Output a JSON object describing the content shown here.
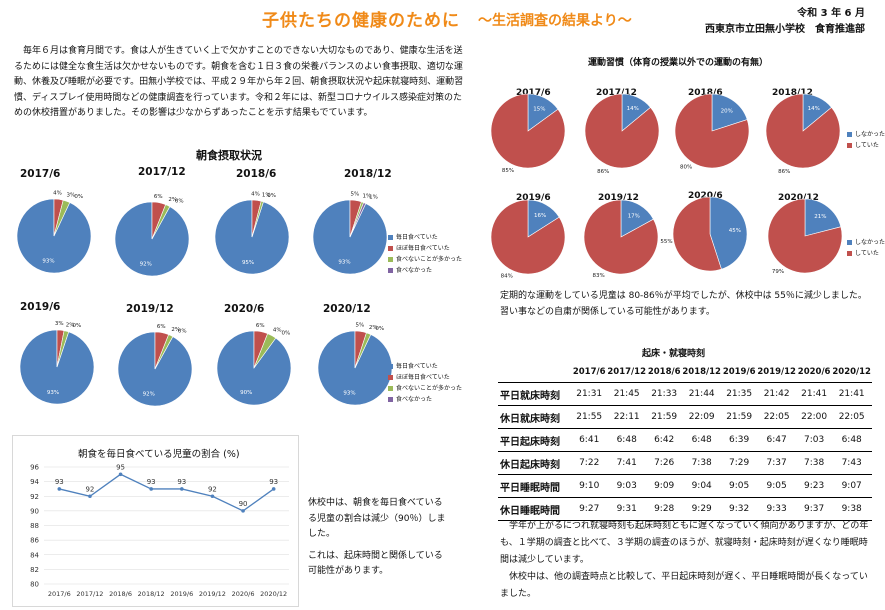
{
  "header": {
    "title": "子供たちの健康のために",
    "subtitle": "～生活調査の結果より～",
    "date": "令和 3 年 6 月",
    "org": "西東京市立田無小学校　食育推進部"
  },
  "intro": "毎年６月は食育月間です。食は人が生きていく上で欠かすことのできない大切なものであり、健康な生活を送るためには健全な食生活は欠かせないものです。朝食を含む１日３食の栄養バランスのよい食事摂取、適切な運動、休養及び睡眠が必要です。田無小学校では、平成２９年から年２回、朝食摂取状況や起床就寝時刻、運動習慣、ディスプレイ使用時間などの健康調査を行っています。令和２年には、新型コロナウイルス感染症対策のための休校措置がありました。その影響は少なからずあったことを示す結果もでています。",
  "breakfast": {
    "title": "朝食摂取状況",
    "legend": [
      "毎日食べていた",
      "ほぼ毎日食べていた",
      "食べないことが多かった",
      "食べなかった"
    ],
    "colors": [
      "#4f81bd",
      "#c0504d",
      "#9bbb59",
      "#8064a2"
    ],
    "charts": [
      {
        "label": "2017/6",
        "values": [
          93,
          4,
          3,
          0
        ],
        "labels": [
          "93%",
          "4%",
          "3%",
          "0%"
        ]
      },
      {
        "label": "2017/12",
        "values": [
          92,
          6,
          2,
          0
        ],
        "labels": [
          "92%",
          "6%",
          "2%",
          "0%"
        ]
      },
      {
        "label": "2018/6",
        "values": [
          95,
          4,
          1,
          0
        ],
        "labels": [
          "95%",
          "4%",
          "1%",
          "0%"
        ]
      },
      {
        "label": "2018/12",
        "values": [
          93,
          5,
          1,
          1
        ],
        "labels": [
          "93%",
          "5%",
          "1%",
          "1%"
        ]
      },
      {
        "label": "2019/6",
        "values": [
          93,
          3,
          2,
          0
        ],
        "labels": [
          "93%",
          "3%",
          "2%",
          "0%"
        ]
      },
      {
        "label": "2019/12",
        "values": [
          92,
          6,
          2,
          0
        ],
        "labels": [
          "92%",
          "6%",
          "2%",
          "0%"
        ]
      },
      {
        "label": "2020/6",
        "values": [
          90,
          6,
          4,
          0
        ],
        "labels": [
          "90%",
          "6%",
          "4%",
          "0%"
        ]
      },
      {
        "label": "2020/12",
        "values": [
          93,
          5,
          2,
          0
        ],
        "labels": [
          "93%",
          "5%",
          "2%",
          "0%"
        ]
      }
    ]
  },
  "exercise": {
    "title": "運動習慣（体育の授業以外での運動の有無）",
    "legend": [
      "しなかった",
      "していた"
    ],
    "colors": [
      "#4f81bd",
      "#c0504d"
    ],
    "charts": [
      {
        "label": "2017/6",
        "values": [
          15,
          85
        ],
        "labels": [
          "15%",
          "85%"
        ]
      },
      {
        "label": "2017/12",
        "values": [
          14,
          86
        ],
        "labels": [
          "14%",
          "86%"
        ]
      },
      {
        "label": "2018/6",
        "values": [
          20,
          80
        ],
        "labels": [
          "20%",
          "80%"
        ]
      },
      {
        "label": "2018/12",
        "values": [
          14,
          86
        ],
        "labels": [
          "14%",
          "86%"
        ]
      },
      {
        "label": "2019/6",
        "values": [
          16,
          84
        ],
        "labels": [
          "16%",
          "84%"
        ]
      },
      {
        "label": "2019/12",
        "values": [
          17,
          83
        ],
        "labels": [
          "17%",
          "83%"
        ]
      },
      {
        "label": "2020/6",
        "values": [
          45,
          55
        ],
        "labels": [
          "45%",
          "55%"
        ]
      },
      {
        "label": "2020/12",
        "values": [
          21,
          79
        ],
        "labels": [
          "21%",
          "79%"
        ]
      }
    ],
    "note": [
      "定期的な運動をしている児童は 80-86％が平均でしたが、休校中は 55％に減少しました。",
      "習い事などの自粛が関係している可能性があります。"
    ]
  },
  "chart_data": {
    "type": "line",
    "title": "朝食を毎日食べている児童の割合 (%)",
    "categories": [
      "2017/6",
      "2017/12",
      "2018/6",
      "2018/12",
      "2019/6",
      "2019/12",
      "2020/6",
      "2020/12"
    ],
    "values": [
      93,
      92,
      95,
      93,
      93,
      92,
      90,
      93
    ],
    "ylim": [
      80,
      96
    ],
    "yticks": [
      80,
      82,
      84,
      86,
      88,
      90,
      92,
      94,
      96
    ],
    "grid": true,
    "color": "#4f81bd"
  },
  "line_note": [
    "休校中は、朝食を毎日食べているる児童の割合は減少（90％）しました。",
    "これは、起床時間と関係している可能性があります。"
  ],
  "sleep": {
    "title": "起床・就寝時刻",
    "headers": [
      "2017/6",
      "2017/12",
      "2018/6",
      "2018/12",
      "2019/6",
      "2019/12",
      "2020/6",
      "2020/12"
    ],
    "rows": [
      {
        "label": "平日就床時刻",
        "values": [
          "21:31",
          "21:45",
          "21:33",
          "21:44",
          "21:35",
          "21:42",
          "21:41",
          "21:41"
        ]
      },
      {
        "label": "休日就床時刻",
        "values": [
          "21:55",
          "22:11",
          "21:59",
          "22:09",
          "21:59",
          "22:05",
          "22:00",
          "22:05"
        ]
      },
      {
        "label": "平日起床時刻",
        "values": [
          "6:41",
          "6:48",
          "6:42",
          "6:48",
          "6:39",
          "6:47",
          "7:03",
          "6:48"
        ]
      },
      {
        "label": "休日起床時刻",
        "values": [
          "7:22",
          "7:41",
          "7:26",
          "7:38",
          "7:29",
          "7:37",
          "7:38",
          "7:43"
        ]
      },
      {
        "label": "平日睡眠時間",
        "values": [
          "9:10",
          "9:03",
          "9:09",
          "9:04",
          "9:05",
          "9:05",
          "9:23",
          "9:07"
        ]
      },
      {
        "label": "休日睡眠時間",
        "values": [
          "9:27",
          "9:31",
          "9:28",
          "9:29",
          "9:32",
          "9:33",
          "9:37",
          "9:38"
        ]
      }
    ],
    "note": [
      "学年が上がるにつれ就寝時刻も起床時刻ともに遅くなっていく傾向がありますが、どの年も、１学期の調査と比べて、３学期の調査のほうが、就寝時刻・起床時刻が遅くなり睡眠時間は減少しています。",
      "休校中は、他の調査時点と比較して、平日起床時刻が遅く、平日睡眠時間が長くなっていました。"
    ]
  }
}
